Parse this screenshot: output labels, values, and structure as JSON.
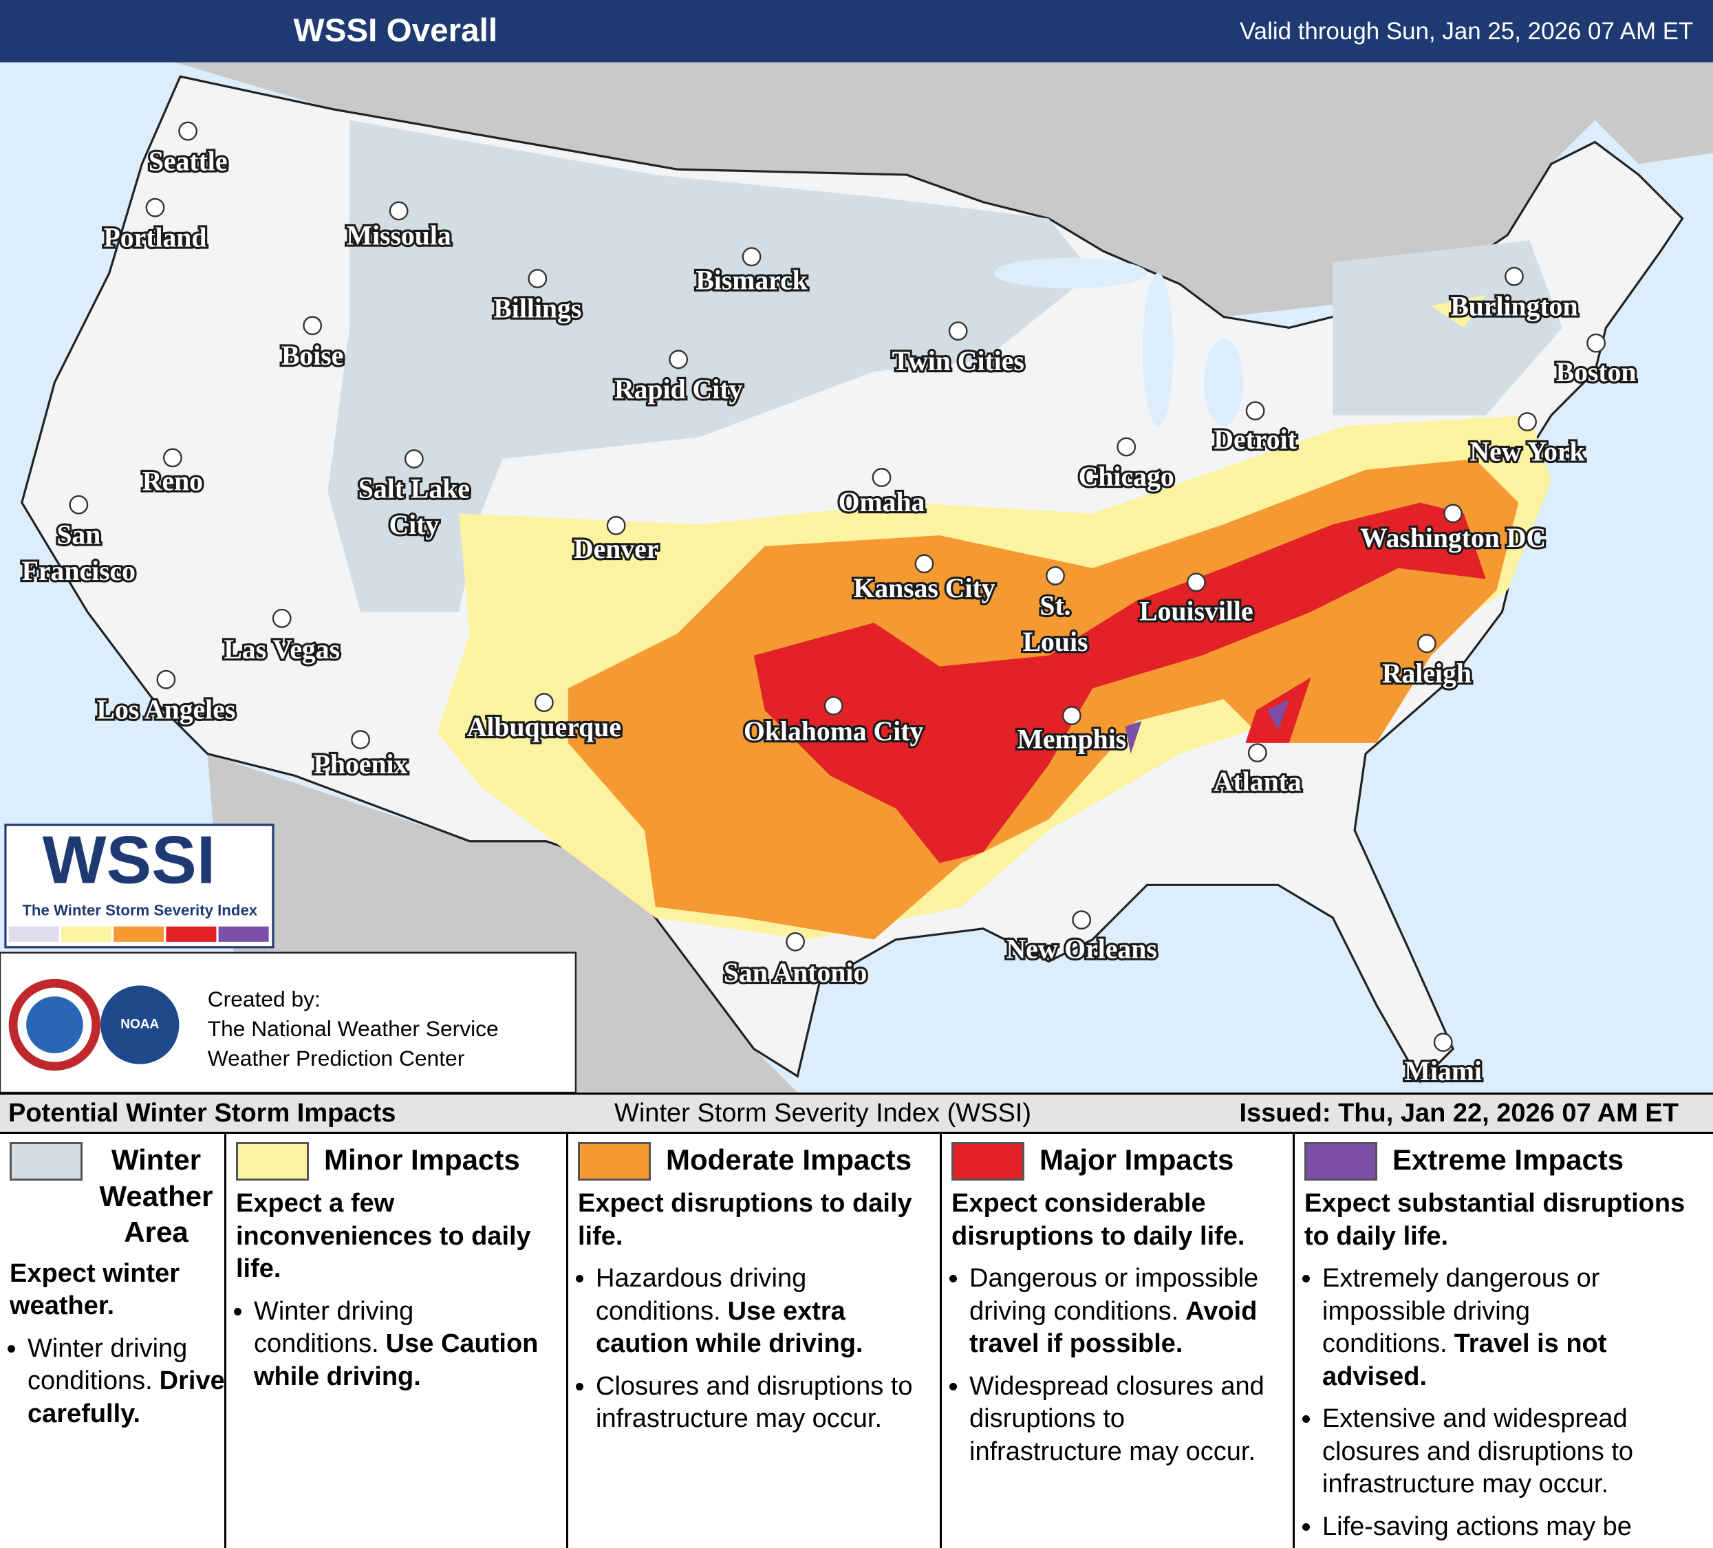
{
  "header": {
    "title": "WSSI Overall",
    "valid": "Valid through Sun, Jan 25, 2026 07 AM ET"
  },
  "map": {
    "cities": [
      [
        "Seattle"
      ],
      [
        "Portland"
      ],
      [
        "Missoula"
      ],
      [
        "Billings"
      ],
      [
        "Bismarck"
      ],
      [
        "Boise"
      ],
      [
        "Rapid City"
      ],
      [
        "Twin Cities"
      ],
      [
        "Burlington"
      ],
      [
        "Boston"
      ],
      [
        "Reno"
      ],
      [
        "Salt Lake",
        "City"
      ],
      [
        "Detroit"
      ],
      [
        "Chicago"
      ],
      [
        "New York"
      ],
      [
        "Omaha"
      ],
      [
        "Denver"
      ],
      [
        "Washington DC"
      ],
      [
        "San",
        "Francisco"
      ],
      [
        "Kansas City"
      ],
      [
        "St.",
        "Louis"
      ],
      [
        "Louisville"
      ],
      [
        "Las Vegas"
      ],
      [
        "Raleigh"
      ],
      [
        "Los Angeles"
      ],
      [
        "Albuquerque"
      ],
      [
        "Oklahoma City"
      ],
      [
        "Memphis"
      ],
      [
        "Phoenix"
      ],
      [
        "Atlanta"
      ],
      [
        "New Orleans"
      ],
      [
        "San Antonio"
      ],
      [
        "Miami"
      ]
    ]
  },
  "logo": {
    "title": "WSSI",
    "subtitle": "The Winter Storm Severity Index"
  },
  "credits": {
    "noaa": "NOAA",
    "created": "Created by:",
    "org1": "The National Weather Service",
    "org2": "Weather Prediction Center"
  },
  "legend": {
    "title": "Potential Winter Storm Impacts",
    "index": "Winter Storm Severity Index (WSSI)",
    "issued": "Issued: Thu, Jan 22, 2026 07 AM ET",
    "levels": [
      {
        "name": "Winter Weather Area",
        "color": "#d3dde4",
        "summary": "Expect winter weather.",
        "bullets": [
          [
            "Winter driving conditions.",
            "Drive carefully."
          ]
        ]
      },
      {
        "name": "Minor Impacts",
        "color": "#fbf3a0",
        "summary": "Expect a few inconveniences to daily life.",
        "bullets": [
          [
            "Winter driving conditions.",
            "Use Caution while driving."
          ]
        ]
      },
      {
        "name": "Moderate Impacts",
        "color": "#f59a33",
        "summary": "Expect disruptions to daily life.",
        "bullets": [
          [
            "Hazardous driving conditions.",
            "Use extra caution while driving."
          ],
          [
            "Closures and disruptions to infrastructure may occur."
          ]
        ]
      },
      {
        "name": "Major Impacts",
        "color": "#e32227",
        "summary": "Expect considerable disruptions to daily life.",
        "bullets": [
          [
            "Dangerous or impossible driving conditions.",
            "Avoid travel if possible."
          ],
          [
            "Widespread closures and disruptions to infrastructure may occur."
          ]
        ]
      },
      {
        "name": "Extreme Impacts",
        "color": "#7b4fa8",
        "summary": "Expect substantial disruptions to daily life.",
        "bullets": [
          [
            "Extremely dangerous or impossible driving conditions.",
            "Travel is not advised."
          ],
          [
            "Extensive and widespread closures and disruptions to infrastructure may occur."
          ],
          [
            "Life-saving actions may be needed."
          ]
        ]
      }
    ]
  }
}
